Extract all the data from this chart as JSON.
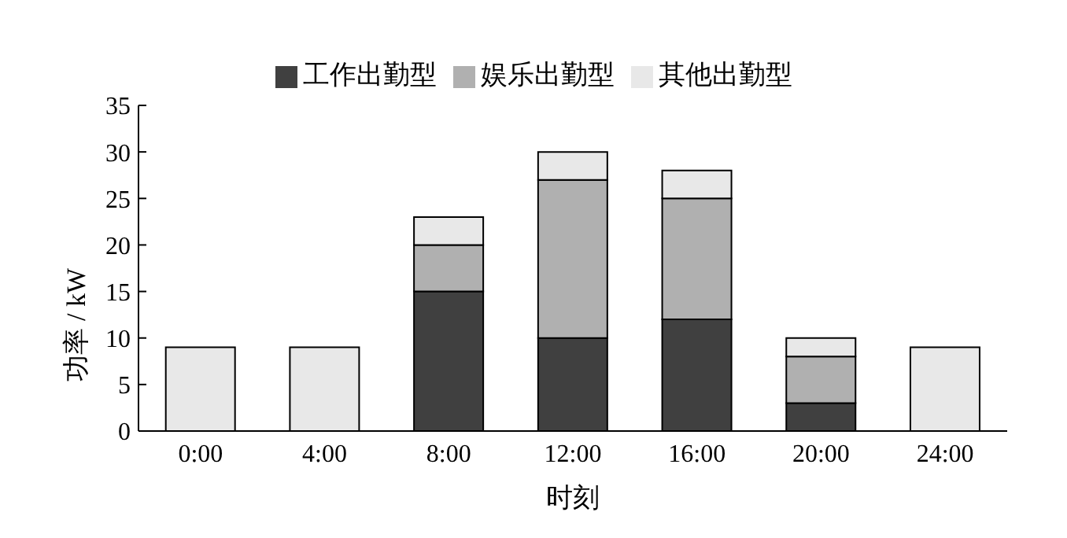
{
  "chart_data": {
    "type": "bar",
    "stacked": true,
    "xlabel": "时刻",
    "ylabel": "功率 / kW",
    "categories": [
      "0:00",
      "4:00",
      "8:00",
      "12:00",
      "16:00",
      "20:00",
      "24:00"
    ],
    "series": [
      {
        "name": "工作出勤型",
        "color": "#404040",
        "values": [
          0,
          0,
          15,
          10,
          12,
          3,
          0
        ]
      },
      {
        "name": "娱乐出勤型",
        "color": "#b0b0b0",
        "values": [
          0,
          0,
          5,
          17,
          13,
          5,
          0
        ]
      },
      {
        "name": "其他出勤型",
        "color": "#e8e8e8",
        "values": [
          9,
          9,
          3,
          3,
          3,
          2,
          9
        ]
      }
    ],
    "ylim": [
      0,
      35
    ],
    "yticks": [
      0,
      5,
      10,
      15,
      20,
      25,
      30,
      35
    ],
    "grid": false,
    "legend": "top"
  }
}
